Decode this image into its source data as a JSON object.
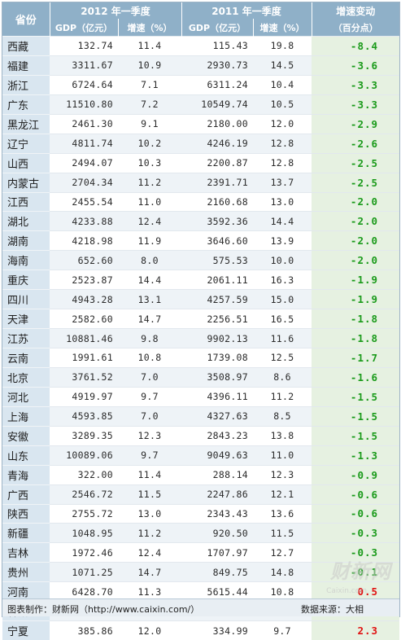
{
  "header": {
    "col_province": "省份",
    "group_2012": "2012 年一季度",
    "group_2011": "2011 年一季度",
    "col_change_line1": "增速变动",
    "col_change_line2": "（百分点）",
    "sub_gdp": "GDP（亿元）",
    "sub_growth": "增速（%）"
  },
  "rows": [
    {
      "province": "西藏",
      "gdp2012": "132.74",
      "g2012": "11.4",
      "gdp2011": "115.43",
      "g2011": "19.8",
      "change": "-8.4",
      "color": "#1a9a1a"
    },
    {
      "province": "福建",
      "gdp2012": "3311.67",
      "g2012": "10.9",
      "gdp2011": "2930.73",
      "g2011": "14.5",
      "change": "-3.6",
      "color": "#1a9a1a"
    },
    {
      "province": "浙江",
      "gdp2012": "6724.64",
      "g2012": "7.1",
      "gdp2011": "6311.24",
      "g2011": "10.4",
      "change": "-3.3",
      "color": "#1a9a1a"
    },
    {
      "province": "广东",
      "gdp2012": "11510.80",
      "g2012": "7.2",
      "gdp2011": "10549.74",
      "g2011": "10.5",
      "change": "-3.3",
      "color": "#1a9a1a"
    },
    {
      "province": "黑龙江",
      "gdp2012": "2461.30",
      "g2012": "9.1",
      "gdp2011": "2180.00",
      "g2011": "12.0",
      "change": "-2.9",
      "color": "#1a9a1a"
    },
    {
      "province": "辽宁",
      "gdp2012": "4811.74",
      "g2012": "10.2",
      "gdp2011": "4246.19",
      "g2011": "12.8",
      "change": "-2.6",
      "color": "#1a9a1a"
    },
    {
      "province": "山西",
      "gdp2012": "2494.07",
      "g2012": "10.3",
      "gdp2011": "2200.87",
      "g2011": "12.8",
      "change": "-2.5",
      "color": "#1a9a1a"
    },
    {
      "province": "内蒙古",
      "gdp2012": "2704.34",
      "g2012": "11.2",
      "gdp2011": "2391.71",
      "g2011": "13.7",
      "change": "-2.5",
      "color": "#1a9a1a"
    },
    {
      "province": "江西",
      "gdp2012": "2455.54",
      "g2012": "11.0",
      "gdp2011": "2160.68",
      "g2011": "13.0",
      "change": "-2.0",
      "color": "#1a9a1a"
    },
    {
      "province": "湖北",
      "gdp2012": "4233.88",
      "g2012": "12.4",
      "gdp2011": "3592.36",
      "g2011": "14.4",
      "change": "-2.0",
      "color": "#1a9a1a"
    },
    {
      "province": "湖南",
      "gdp2012": "4218.98",
      "g2012": "11.9",
      "gdp2011": "3646.60",
      "g2011": "13.9",
      "change": "-2.0",
      "color": "#1a9a1a"
    },
    {
      "province": "海南",
      "gdp2012": "652.60",
      "g2012": "8.0",
      "gdp2011": "575.53",
      "g2011": "10.0",
      "change": "-2.0",
      "color": "#1a9a1a"
    },
    {
      "province": "重庆",
      "gdp2012": "2523.87",
      "g2012": "14.4",
      "gdp2011": "2061.11",
      "g2011": "16.3",
      "change": "-1.9",
      "color": "#1a9a1a"
    },
    {
      "province": "四川",
      "gdp2012": "4943.28",
      "g2012": "13.1",
      "gdp2011": "4257.59",
      "g2011": "15.0",
      "change": "-1.9",
      "color": "#1a9a1a"
    },
    {
      "province": "天津",
      "gdp2012": "2582.60",
      "g2012": "14.7",
      "gdp2011": "2256.51",
      "g2011": "16.5",
      "change": "-1.8",
      "color": "#1a9a1a"
    },
    {
      "province": "江苏",
      "gdp2012": "10881.46",
      "g2012": "9.8",
      "gdp2011": "9902.13",
      "g2011": "11.6",
      "change": "-1.8",
      "color": "#1a9a1a"
    },
    {
      "province": "云南",
      "gdp2012": "1991.61",
      "g2012": "10.8",
      "gdp2011": "1739.08",
      "g2011": "12.5",
      "change": "-1.7",
      "color": "#1a9a1a"
    },
    {
      "province": "北京",
      "gdp2012": "3761.52",
      "g2012": "7.0",
      "gdp2011": "3508.97",
      "g2011": "8.6",
      "change": "-1.6",
      "color": "#1a9a1a"
    },
    {
      "province": "河北",
      "gdp2012": "4919.97",
      "g2012": "9.7",
      "gdp2011": "4396.11",
      "g2011": "11.2",
      "change": "-1.5",
      "color": "#1a9a1a"
    },
    {
      "province": "上海",
      "gdp2012": "4593.85",
      "g2012": "7.0",
      "gdp2011": "4327.63",
      "g2011": "8.5",
      "change": "-1.5",
      "color": "#1a9a1a"
    },
    {
      "province": "安徽",
      "gdp2012": "3289.35",
      "g2012": "12.3",
      "gdp2011": "2843.23",
      "g2011": "13.8",
      "change": "-1.5",
      "color": "#1a9a1a"
    },
    {
      "province": "山东",
      "gdp2012": "10089.06",
      "g2012": "9.7",
      "gdp2011": "9049.63",
      "g2011": "11.0",
      "change": "-1.3",
      "color": "#1a9a1a"
    },
    {
      "province": "青海",
      "gdp2012": "322.00",
      "g2012": "11.4",
      "gdp2011": "288.14",
      "g2011": "12.3",
      "change": "-0.9",
      "color": "#1a9a1a"
    },
    {
      "province": "广西",
      "gdp2012": "2546.72",
      "g2012": "11.5",
      "gdp2011": "2247.86",
      "g2011": "12.1",
      "change": "-0.6",
      "color": "#1a9a1a"
    },
    {
      "province": "陕西",
      "gdp2012": "2755.72",
      "g2012": "13.0",
      "gdp2011": "2343.43",
      "g2011": "13.6",
      "change": "-0.6",
      "color": "#1a9a1a"
    },
    {
      "province": "新疆",
      "gdp2012": "1048.95",
      "g2012": "11.2",
      "gdp2011": "920.50",
      "g2011": "11.5",
      "change": "-0.3",
      "color": "#1a9a1a"
    },
    {
      "province": "吉林",
      "gdp2012": "1972.46",
      "g2012": "12.4",
      "gdp2011": "1707.97",
      "g2011": "12.7",
      "change": "-0.3",
      "color": "#1a9a1a"
    },
    {
      "province": "贵州",
      "gdp2012": "1071.25",
      "g2012": "14.7",
      "gdp2011": "849.75",
      "g2011": "14.8",
      "change": "-0.1",
      "color": "#1a9a1a"
    },
    {
      "province": "河南",
      "gdp2012": "6428.70",
      "g2012": "11.3",
      "gdp2011": "5615.44",
      "g2011": "10.8",
      "change": "0.5",
      "color": "#e01010"
    },
    {
      "province": "甘肃",
      "gdp2012": "1012.95",
      "g2012": "12.5",
      "gdp2011": "883.07",
      "g2011": "10.8",
      "change": "1.7",
      "color": "#e01010"
    },
    {
      "province": "宁夏",
      "gdp2012": "385.86",
      "g2012": "12.0",
      "gdp2011": "334.99",
      "g2011": "9.7",
      "change": "2.3",
      "color": "#e01010"
    }
  ],
  "footer": {
    "credit": "图表制作：财新网（http://www.caixin.com/）",
    "source": "数据来源：大相"
  },
  "watermark": {
    "text": "财新网",
    "sub": "Caixin.com"
  }
}
